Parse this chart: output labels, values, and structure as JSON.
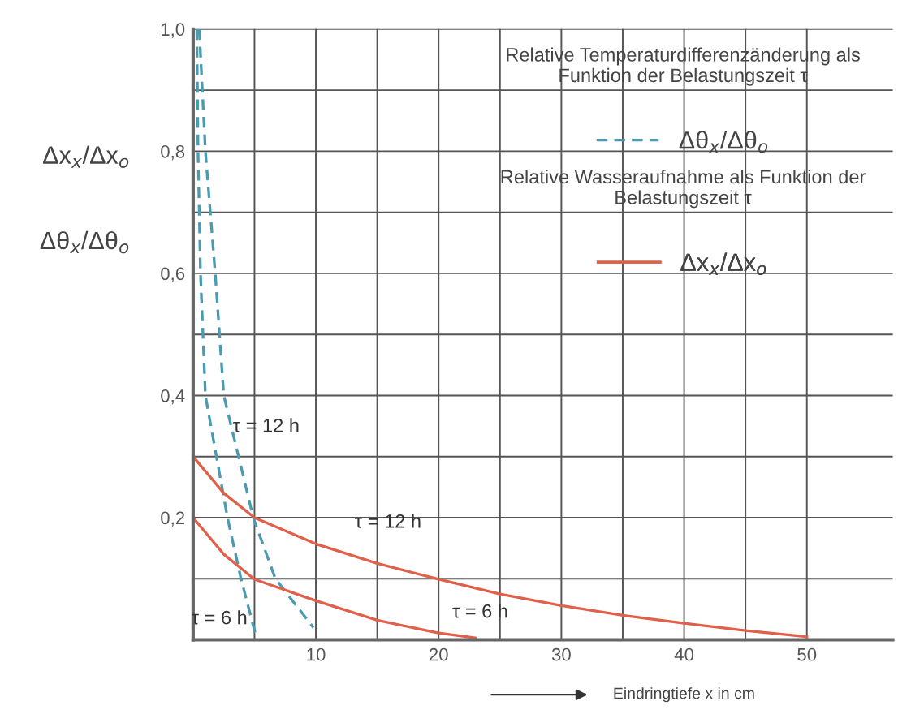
{
  "chart_data": {
    "type": "line",
    "xlabel": "Eindringtiefe x in cm",
    "ylabel": "Δx$_{x}$/Δx$_{o}$\n\n\nΔθ$_{x}$/Δθ$_{o}$",
    "xlim": [
      0,
      57
    ],
    "ylim": [
      0,
      1.0
    ],
    "xticks": [
      {
        "value": 5,
        "label": null
      },
      10,
      {
        "value": 15,
        "label": null
      },
      20,
      {
        "value": 25,
        "label": null
      },
      30,
      {
        "value": 35,
        "label": null
      },
      40,
      {
        "value": 45,
        "label": null
      },
      50
    ],
    "yticks": [
      {
        "value": 0.1,
        "label": null
      },
      {
        "value": 0.2,
        "label": "0,2"
      },
      {
        "value": 0.3,
        "label": null
      },
      {
        "value": 0.4,
        "label": "0,4"
      },
      {
        "value": 0.5,
        "label": null
      },
      {
        "value": 0.6,
        "label": "0,6"
      },
      {
        "value": 0.7,
        "label": null
      },
      {
        "value": 0.8,
        "label": "0,8"
      },
      {
        "value": 0.9,
        "label": null
      },
      {
        "value": 1.0,
        "label": "1,0"
      }
    ],
    "grid": true,
    "legend": "top right",
    "series": [
      {
        "name": "Δθ$_{x}$/Δθ$_{o}$",
        "color": "#4a9bb0",
        "line_style": "dashed",
        "x": [
          0.5,
          1.0,
          1.8,
          2.5,
          3.7,
          4.9,
          6.7,
          9.8
        ],
        "values": [
          1.0,
          0.8,
          0.6,
          0.4,
          0.3,
          0.2,
          0.1,
          0.02
        ]
      },
      {
        "color": "#4a9bb0",
        "line_style": "dashed",
        "x": [
          0.3,
          0.4,
          0.6,
          1.0,
          1.9,
          2.8,
          3.9,
          5.2
        ],
        "values": [
          1.0,
          0.8,
          0.6,
          0.4,
          0.3,
          0.2,
          0.1,
          0.0
        ]
      },
      {
        "name": "Δx$_{x}$/Δx$_{o}$",
        "color": "#e0604a",
        "line_style": "solid",
        "x": [
          0,
          2.5,
          5,
          10,
          15,
          20,
          25,
          30,
          35,
          40,
          45,
          50
        ],
        "values": [
          0.3,
          0.24,
          0.2,
          0.157,
          0.125,
          0.099,
          0.075,
          0.056,
          0.04,
          0.027,
          0.015,
          0.005
        ]
      },
      {
        "color": "#e0604a",
        "line_style": "solid",
        "x": [
          0,
          2.5,
          5,
          10,
          15,
          20,
          23
        ],
        "values": [
          0.2,
          0.14,
          0.099,
          0.064,
          0.032,
          0.011,
          0.003
        ]
      }
    ],
    "annotations": [
      "Relative Temperaturdifferenzänderung als\nFunktion der Belastungszeit τ",
      "Relative Wasseraufnahme als Funktion der\nBelastungszeit τ",
      {
        "text": "τ = 12 h",
        "x": 2.5,
        "y": 0.4
      },
      {
        "text": "τ = 12 h",
        "x": 15,
        "y": 0.125
      },
      {
        "text": "τ = 6 h",
        "x": 3.9,
        "y": 0.1
      },
      {
        "text": "τ = 6 h",
        "x": 20,
        "y": 0.011
      }
    ]
  }
}
